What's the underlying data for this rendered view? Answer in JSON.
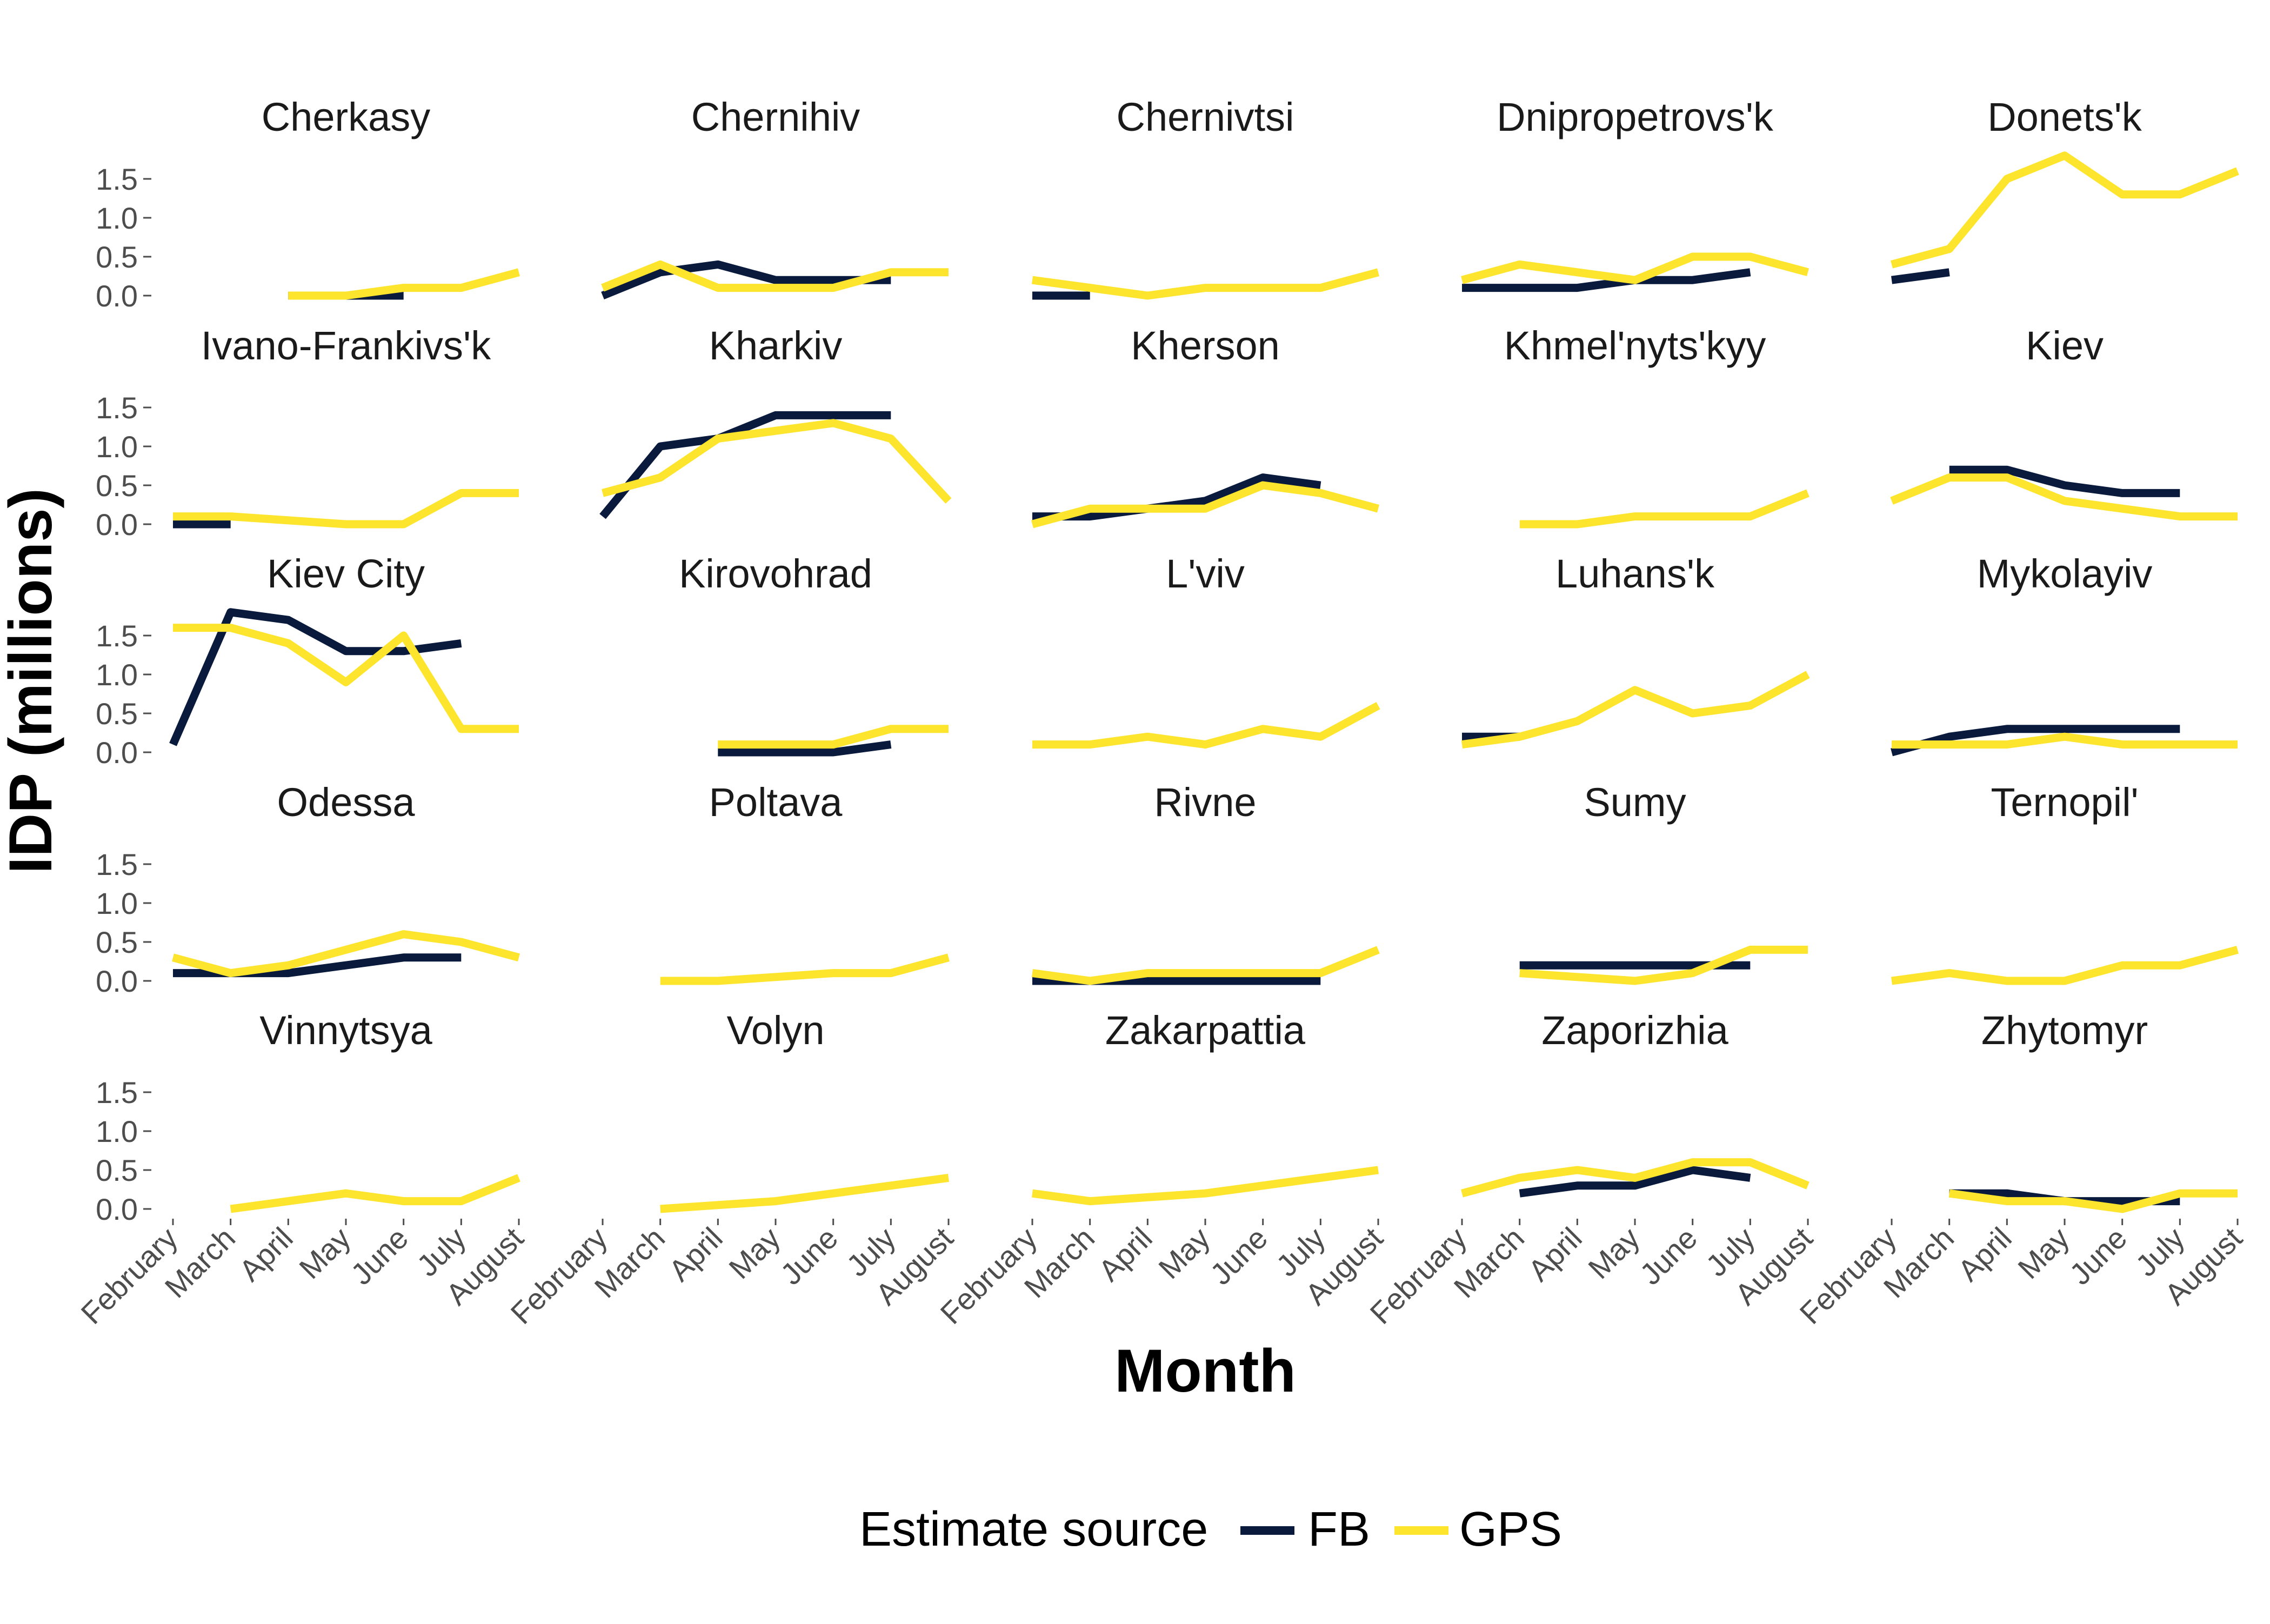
{
  "chart_data": {
    "type": "line",
    "layout": "facet-grid-5x5",
    "xlabel": "Month",
    "ylabel": "IDP (millions)",
    "x": [
      "February",
      "March",
      "April",
      "May",
      "June",
      "July",
      "August"
    ],
    "y_ticks": [
      "0.0",
      "0.5",
      "1.0",
      "1.5"
    ],
    "ylim": [
      0,
      1.9
    ],
    "grid": false,
    "legend": {
      "title": "Estimate source",
      "placement": "bottom",
      "entries": [
        {
          "name": "FB",
          "color": "#0a1a3c"
        },
        {
          "name": "GPS",
          "color": "#fde52e"
        }
      ]
    },
    "series_colors": {
      "FB": "#0a1a3c",
      "GPS": "#fde52e"
    },
    "panels": [
      {
        "name": "Cherkasy",
        "FB": [
          null,
          null,
          0.0,
          0.0,
          0.0,
          null,
          null
        ],
        "GPS": [
          null,
          null,
          0.0,
          0.0,
          0.1,
          0.1,
          0.3
        ]
      },
      {
        "name": "Chernihiv",
        "FB": [
          0.0,
          0.3,
          0.4,
          0.2,
          0.2,
          0.2,
          null
        ],
        "GPS": [
          0.1,
          0.4,
          0.1,
          0.1,
          0.1,
          0.3,
          0.3
        ]
      },
      {
        "name": "Chernivtsi",
        "FB": [
          0.0,
          0.0,
          null,
          null,
          null,
          null,
          null
        ],
        "GPS": [
          0.2,
          0.1,
          0.0,
          0.1,
          0.1,
          0.1,
          0.3
        ]
      },
      {
        "name": "Dnipropetrovs'k",
        "FB": [
          0.1,
          0.1,
          0.1,
          0.2,
          0.2,
          0.3,
          null
        ],
        "GPS": [
          0.2,
          0.4,
          0.3,
          0.2,
          0.5,
          0.5,
          0.3
        ]
      },
      {
        "name": "Donets'k",
        "FB": [
          0.2,
          0.3,
          null,
          null,
          null,
          null,
          null
        ],
        "GPS": [
          0.4,
          0.6,
          1.5,
          1.8,
          1.3,
          1.3,
          1.6
        ]
      },
      {
        "name": "Ivano-Frankivs'k",
        "FB": [
          0.0,
          0.0,
          null,
          null,
          null,
          null,
          null
        ],
        "GPS": [
          0.1,
          0.1,
          0.05,
          0.0,
          0.0,
          0.4,
          0.4
        ]
      },
      {
        "name": "Kharkiv",
        "FB": [
          0.1,
          1.0,
          1.1,
          1.4,
          1.4,
          1.4,
          null
        ],
        "GPS": [
          0.4,
          0.6,
          1.1,
          1.2,
          1.3,
          1.1,
          0.3
        ]
      },
      {
        "name": "Kherson",
        "FB": [
          0.1,
          0.1,
          0.2,
          0.3,
          0.6,
          0.5,
          null
        ],
        "GPS": [
          0.0,
          0.2,
          0.2,
          0.2,
          0.5,
          0.4,
          0.2
        ]
      },
      {
        "name": "Khmel'nyts'kyy",
        "FB": [
          null,
          null,
          null,
          null,
          null,
          null,
          null
        ],
        "GPS": [
          null,
          0.0,
          0.0,
          0.1,
          0.1,
          0.1,
          0.4
        ]
      },
      {
        "name": "Kiev",
        "FB": [
          null,
          0.7,
          0.7,
          0.5,
          0.4,
          0.4,
          null
        ],
        "GPS": [
          0.3,
          0.6,
          0.6,
          0.3,
          0.2,
          0.1,
          0.1
        ]
      },
      {
        "name": "Kiev City",
        "FB": [
          0.1,
          1.8,
          1.7,
          1.3,
          1.3,
          1.4,
          null
        ],
        "GPS": [
          1.6,
          1.6,
          1.4,
          0.9,
          1.5,
          0.3,
          0.3
        ]
      },
      {
        "name": "Kirovohrad",
        "FB": [
          null,
          null,
          0.0,
          0.0,
          0.0,
          0.1,
          null
        ],
        "GPS": [
          null,
          null,
          0.1,
          0.1,
          0.1,
          0.3,
          0.3
        ]
      },
      {
        "name": "L'viv",
        "FB": [
          null,
          null,
          null,
          null,
          null,
          null,
          null
        ],
        "GPS": [
          0.1,
          0.1,
          0.2,
          0.1,
          0.3,
          0.2,
          0.6
        ]
      },
      {
        "name": "Luhans'k",
        "FB": [
          0.2,
          0.2,
          null,
          null,
          null,
          null,
          null
        ],
        "GPS": [
          0.1,
          0.2,
          0.4,
          0.8,
          0.5,
          0.6,
          1.0
        ]
      },
      {
        "name": "Mykolayiv",
        "FB": [
          0.0,
          0.2,
          0.3,
          0.3,
          0.3,
          0.3,
          null
        ],
        "GPS": [
          0.1,
          0.1,
          0.1,
          0.2,
          0.1,
          0.1,
          0.1
        ]
      },
      {
        "name": "Odessa",
        "FB": [
          0.1,
          0.1,
          0.1,
          0.2,
          0.3,
          0.3,
          null
        ],
        "GPS": [
          0.3,
          0.1,
          0.2,
          0.4,
          0.6,
          0.5,
          0.3
        ]
      },
      {
        "name": "Poltava",
        "FB": [
          null,
          null,
          null,
          null,
          null,
          null,
          null
        ],
        "GPS": [
          null,
          0.0,
          0.0,
          0.05,
          0.1,
          0.1,
          0.3
        ]
      },
      {
        "name": "Rivne",
        "FB": [
          0.0,
          0.0,
          0.0,
          0.0,
          0.0,
          0.0,
          null
        ],
        "GPS": [
          0.1,
          0.0,
          0.1,
          0.1,
          0.1,
          0.1,
          0.4
        ]
      },
      {
        "name": "Sumy",
        "FB": [
          null,
          0.2,
          0.2,
          0.2,
          0.2,
          0.2,
          null
        ],
        "GPS": [
          null,
          0.1,
          0.05,
          0.0,
          0.1,
          0.4,
          0.4
        ]
      },
      {
        "name": "Ternopil'",
        "FB": [
          null,
          null,
          null,
          null,
          null,
          null,
          null
        ],
        "GPS": [
          0.0,
          0.1,
          0.0,
          0.0,
          0.2,
          0.2,
          0.4
        ]
      },
      {
        "name": "Vinnytsya",
        "FB": [
          null,
          null,
          null,
          null,
          null,
          null,
          null
        ],
        "GPS": [
          null,
          0.0,
          0.1,
          0.2,
          0.1,
          0.1,
          0.4
        ]
      },
      {
        "name": "Volyn",
        "FB": [
          null,
          null,
          null,
          null,
          null,
          null,
          null
        ],
        "GPS": [
          null,
          0.0,
          0.05,
          0.1,
          0.2,
          0.3,
          0.4
        ]
      },
      {
        "name": "Zakarpattia",
        "FB": [
          null,
          null,
          null,
          null,
          null,
          null,
          null
        ],
        "GPS": [
          0.2,
          0.1,
          0.15,
          0.2,
          0.3,
          0.4,
          0.5
        ]
      },
      {
        "name": "Zaporizhia",
        "FB": [
          null,
          0.2,
          0.3,
          0.3,
          0.5,
          0.4,
          null
        ],
        "GPS": [
          0.2,
          0.4,
          0.5,
          0.4,
          0.6,
          0.6,
          0.3
        ]
      },
      {
        "name": "Zhytomyr",
        "FB": [
          null,
          0.2,
          0.2,
          0.1,
          0.1,
          0.1,
          null
        ],
        "GPS": [
          null,
          0.2,
          0.1,
          0.1,
          0.0,
          0.2,
          0.2
        ]
      }
    ]
  }
}
